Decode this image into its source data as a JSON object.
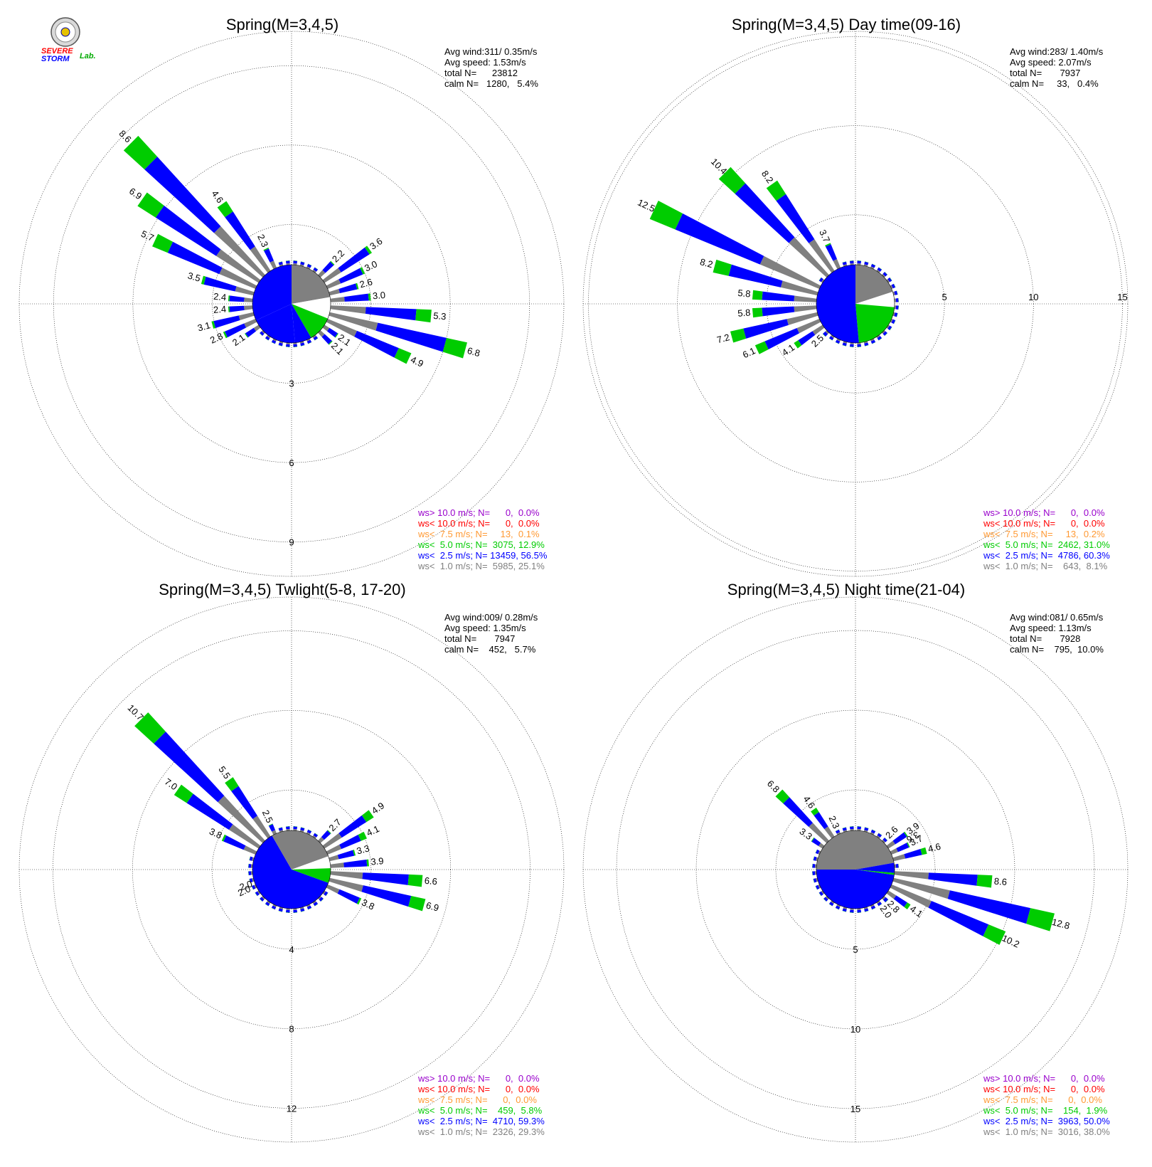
{
  "logo": {
    "word1": "SEVERE",
    "word2": "STORM",
    "word3": "Lab."
  },
  "legend_colors": {
    "above10": "#9900cc",
    "below10": "#ff0000",
    "below7_5": "#ff9933",
    "below5": "#00cc00",
    "below2_5": "#0000ff",
    "below1": "#808080"
  },
  "chart_data": [
    {
      "type": "windrose",
      "title": "Spring(M=3,4,5)",
      "stats": {
        "avg_wind": "Avg wind:311/ 0.35m/s",
        "avg_speed": "Avg speed: 1.53m/s",
        "total_n": "total N=      23812",
        "calm_n": "calm N=   1280,   5.4%"
      },
      "rings": [
        3,
        6,
        9
      ],
      "ring_labels": [
        "3",
        "6",
        "9"
      ],
      "rmax": 10.3,
      "labeled_bars": [
        {
          "dir": 315,
          "total": 8.6,
          "label": "8.6"
        },
        {
          "dir": 305,
          "total": 6.9,
          "label": "6.9"
        },
        {
          "dir": 295,
          "total": 5.7,
          "label": "5.7"
        },
        {
          "dir": 325,
          "total": 4.6,
          "label": "4.6"
        },
        {
          "dir": 285,
          "total": 3.5,
          "label": "3.5"
        },
        {
          "dir": 335,
          "total": 2.3,
          "label": "2.3"
        },
        {
          "dir": 275,
          "total": 2.4,
          "label": "2.4"
        },
        {
          "dir": 265,
          "total": 2.4,
          "label": "2.4"
        },
        {
          "dir": 255,
          "total": 3.1,
          "label": "3.1"
        },
        {
          "dir": 245,
          "total": 2.8,
          "label": "2.8"
        },
        {
          "dir": 235,
          "total": 2.1,
          "label": "2.1"
        },
        {
          "dir": 45,
          "total": 2.2,
          "label": "2.2"
        },
        {
          "dir": 55,
          "total": 3.6,
          "label": "3.6"
        },
        {
          "dir": 65,
          "total": 3.0,
          "label": "3.0"
        },
        {
          "dir": 75,
          "total": 2.6,
          "label": "2.6"
        },
        {
          "dir": 85,
          "total": 3.0,
          "label": "3.0"
        },
        {
          "dir": 95,
          "total": 5.3,
          "label": "5.3"
        },
        {
          "dir": 105,
          "total": 6.8,
          "label": "6.8"
        },
        {
          "dir": 115,
          "total": 4.9,
          "label": "4.9"
        },
        {
          "dir": 125,
          "total": 2.1,
          "label": "2.1"
        },
        {
          "dir": 135,
          "total": 2.1,
          "label": "2.1"
        }
      ],
      "legend": [
        "ws> 10.0 m/s; N=      0,  0.0%",
        "ws< 10.0 m/s; N=      0,  0.0%",
        "ws<  7.5 m/s; N=     13,  0.1%",
        "ws<  5.0 m/s; N=  3075, 12.9%",
        "ws<  2.5 m/s; N= 13459, 56.5%",
        "ws<  1.0 m/s; N=  5985, 25.1%"
      ]
    },
    {
      "type": "windrose",
      "title": "Spring(M=3,4,5) Day time(09-16)",
      "stats": {
        "avg_wind": "Avg wind:283/ 1.40m/s",
        "avg_speed": "Avg speed: 2.07m/s",
        "total_n": "total N=       7937",
        "calm_n": "calm N=     33,   0.4%"
      },
      "rings": [
        5,
        10,
        15
      ],
      "ring_labels": [
        "5",
        "10",
        "15"
      ],
      "rmax": 15.3,
      "labeled_bars": [
        {
          "dir": 295,
          "total": 12.5,
          "label": "12.5"
        },
        {
          "dir": 315,
          "total": 10.4,
          "label": "10.4"
        },
        {
          "dir": 325,
          "total": 8.2,
          "label": "8.2"
        },
        {
          "dir": 285,
          "total": 8.2,
          "label": "8.2"
        },
        {
          "dir": 335,
          "total": 3.7,
          "label": "3.7"
        },
        {
          "dir": 275,
          "total": 5.8,
          "label": "5.8"
        },
        {
          "dir": 265,
          "total": 5.8,
          "label": "5.8"
        },
        {
          "dir": 255,
          "total": 7.2,
          "label": "7.2"
        },
        {
          "dir": 245,
          "total": 6.1,
          "label": "6.1"
        },
        {
          "dir": 235,
          "total": 4.1,
          "label": "4.1"
        },
        {
          "dir": 225,
          "total": 2.5,
          "label": "2.5"
        }
      ],
      "legend": [
        "ws> 10.0 m/s; N=      0,  0.0%",
        "ws< 10.0 m/s; N=      0,  0.0%",
        "ws<  7.5 m/s; N=     13,  0.2%",
        "ws<  5.0 m/s; N=  2462, 31.0%",
        "ws<  2.5 m/s; N=  4786, 60.3%",
        "ws<  1.0 m/s; N=    643,  8.1%"
      ]
    },
    {
      "type": "windrose",
      "title": "Spring(M=3,4,5) Twlight(5-8, 17-20)",
      "stats": {
        "avg_wind": "Avg wind:009/ 0.28m/s",
        "avg_speed": "Avg speed: 1.35m/s",
        "total_n": "total N=       7947",
        "calm_n": "calm N=    452,   5.7%"
      },
      "rings": [
        4,
        8,
        12
      ],
      "ring_labels": [
        "4",
        "8",
        "12"
      ],
      "rmax": 13.7,
      "labeled_bars": [
        {
          "dir": 315,
          "total": 10.7,
          "label": "10.7"
        },
        {
          "dir": 305,
          "total": 7.0,
          "label": "7.0"
        },
        {
          "dir": 325,
          "total": 5.5,
          "label": "5.5"
        },
        {
          "dir": 295,
          "total": 3.8,
          "label": "3.8"
        },
        {
          "dir": 335,
          "total": 2.5,
          "label": "2.5"
        },
        {
          "dir": 245,
          "total": 2.0,
          "label": "2.0"
        },
        {
          "dir": 250,
          "total": 2.0,
          "label": "2.0"
        },
        {
          "dir": 45,
          "total": 2.7,
          "label": "2.7"
        },
        {
          "dir": 55,
          "total": 4.9,
          "label": "4.9"
        },
        {
          "dir": 65,
          "total": 4.1,
          "label": "4.1"
        },
        {
          "dir": 75,
          "total": 3.3,
          "label": "3.3"
        },
        {
          "dir": 85,
          "total": 3.9,
          "label": "3.9"
        },
        {
          "dir": 95,
          "total": 6.6,
          "label": "6.6"
        },
        {
          "dir": 105,
          "total": 6.9,
          "label": "6.9"
        },
        {
          "dir": 115,
          "total": 3.8,
          "label": "3.8"
        }
      ],
      "legend": [
        "ws> 10.0 m/s; N=      0,  0.0%",
        "ws< 10.0 m/s; N=      0,  0.0%",
        "ws<  7.5 m/s; N=      0,  0.0%",
        "ws<  5.0 m/s; N=    459,  5.8%",
        "ws<  2.5 m/s; N=  4710, 59.3%",
        "ws<  1.0 m/s; N=  2326, 29.3%"
      ]
    },
    {
      "type": "windrose",
      "title": "Spring(M=3,4,5) Night time(21-04)",
      "stats": {
        "avg_wind": "Avg wind:081/ 0.65m/s",
        "avg_speed": "Avg speed: 1.13m/s",
        "total_n": "total N=       7928",
        "calm_n": "calm N=    795,  10.0%"
      },
      "rings": [
        5,
        10,
        15
      ],
      "ring_labels": [
        "5",
        "10",
        "15"
      ],
      "rmax": 17.1,
      "labeled_bars": [
        {
          "dir": 315,
          "total": 6.8,
          "label": "6.8"
        },
        {
          "dir": 325,
          "total": 4.6,
          "label": "4.6"
        },
        {
          "dir": 305,
          "total": 3.3,
          "label": "3.3"
        },
        {
          "dir": 335,
          "total": 2.3,
          "label": "2.3"
        },
        {
          "dir": 45,
          "total": 2.6,
          "label": "2.6"
        },
        {
          "dir": 55,
          "total": 3.9,
          "label": "3.9"
        },
        {
          "dir": 60,
          "total": 3.6,
          "label": "3.6"
        },
        {
          "dir": 65,
          "total": 3.7,
          "label": "3.7"
        },
        {
          "dir": 75,
          "total": 4.6,
          "label": "4.6"
        },
        {
          "dir": 95,
          "total": 8.6,
          "label": "8.6"
        },
        {
          "dir": 105,
          "total": 12.8,
          "label": "12.8"
        },
        {
          "dir": 115,
          "total": 10.2,
          "label": "10.2"
        },
        {
          "dir": 125,
          "total": 4.1,
          "label": "4.1"
        },
        {
          "dir": 135,
          "total": 2.8,
          "label": "2.8"
        },
        {
          "dir": 145,
          "total": 2.0,
          "label": "2.0"
        }
      ],
      "legend": [
        "ws> 10.0 m/s; N=      0,  0.0%",
        "ws< 10.0 m/s; N=      0,  0.0%",
        "ws<  7.5 m/s; N=      0,  0.0%",
        "ws<  5.0 m/s; N=    154,  1.9%",
        "ws<  2.5 m/s; N=  3963, 50.0%",
        "ws<  1.0 m/s; N=  3016, 38.0%"
      ]
    }
  ]
}
